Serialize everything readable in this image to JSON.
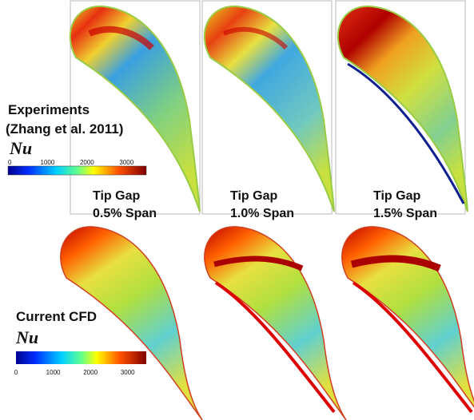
{
  "panels": [
    {
      "line1": "Tip Gap",
      "line2": "0.5% Span"
    },
    {
      "line1": "Tip Gap",
      "line2": "1.0% Span"
    },
    {
      "line1": "Tip Gap",
      "line2": "1.5% Span"
    }
  ],
  "experiments": {
    "line1": "Experiments",
    "line2": "(Zhang et al. 2011)",
    "symbol": "Nu",
    "colorbar_ticks": [
      0,
      1000,
      2000,
      3000
    ]
  },
  "cfd": {
    "title": "Current CFD",
    "symbol": "Nu",
    "colorbar_ticks": [
      0,
      1000,
      2000,
      3000
    ]
  }
}
